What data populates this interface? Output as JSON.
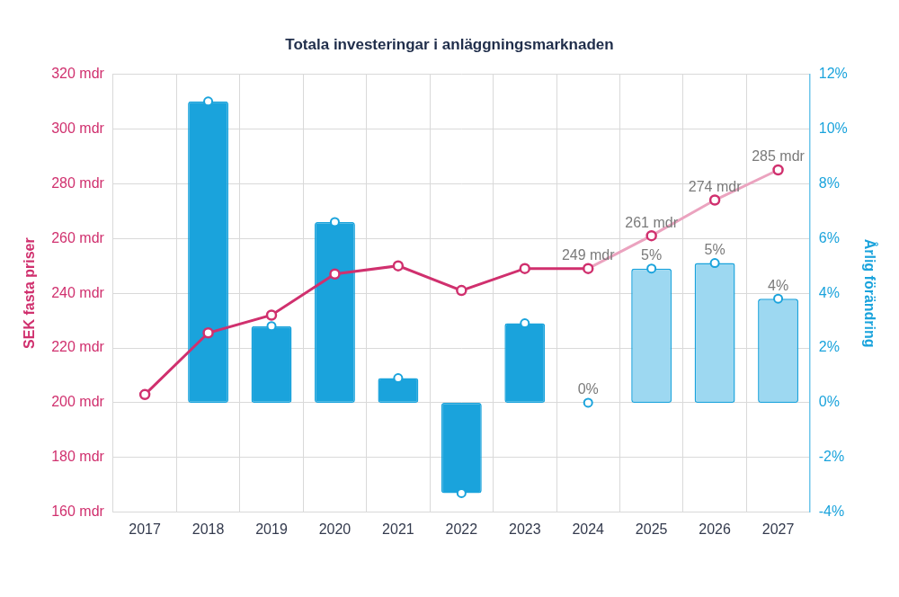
{
  "chart_data": {
    "type": "bar",
    "title": "Totala investeringar i anläggningsmarknaden",
    "categories": [
      "2017",
      "2018",
      "2019",
      "2020",
      "2021",
      "2022",
      "2023",
      "2024",
      "2025",
      "2026",
      "2027"
    ],
    "ylabel": "SEK fasta priser",
    "y2label": "Årlig förändring",
    "ylim": [
      160,
      320
    ],
    "yticks": [
      {
        "value": 160,
        "label": "160 mdr"
      },
      {
        "value": 180,
        "label": "180 mdr"
      },
      {
        "value": 200,
        "label": "200 mdr"
      },
      {
        "value": 220,
        "label": "220 mdr"
      },
      {
        "value": 240,
        "label": "240 mdr"
      },
      {
        "value": 260,
        "label": "260 mdr"
      },
      {
        "value": 280,
        "label": "280 mdr"
      },
      {
        "value": 300,
        "label": "300 mdr"
      },
      {
        "value": 320,
        "label": "320 mdr"
      }
    ],
    "y2lim": [
      -4,
      12
    ],
    "y2ticks": [
      {
        "value": -4,
        "label": "-4%"
      },
      {
        "value": -2,
        "label": "-2%"
      },
      {
        "value": 0,
        "label": "0%"
      },
      {
        "value": 2,
        "label": "2%"
      },
      {
        "value": 4,
        "label": "4%"
      },
      {
        "value": 6,
        "label": "6%"
      },
      {
        "value": 8,
        "label": "8%"
      },
      {
        "value": 10,
        "label": "10%"
      },
      {
        "value": 12,
        "label": "12%"
      }
    ],
    "grid": true,
    "data_labels": true,
    "series": [
      {
        "type": "bar",
        "axis": "y2",
        "color": "#1aa3dc",
        "colors": [
          "#1aa3dc",
          "#1aa3dc",
          "#1aa3dc",
          "#1aa3dc",
          "#1aa3dc",
          "#1aa3dc",
          "#1aa3dc",
          "#1aa3dc",
          "#9dd8f1",
          "#9dd8f1",
          "#9dd8f1"
        ],
        "marker": "circle",
        "values": [
          null,
          11,
          2.8,
          6.6,
          0.9,
          -3.3,
          2.9,
          0,
          4.9,
          5.1,
          3.8
        ],
        "value_labels": [
          null,
          null,
          null,
          null,
          null,
          null,
          null,
          "0%",
          "5%",
          "5%",
          "4%"
        ]
      },
      {
        "type": "line",
        "color": "#d0306e",
        "colors": [
          "#d0306e",
          "#d0306e",
          "#d0306e",
          "#d0306e",
          "#d0306e",
          "#d0306e",
          "#d0306e",
          "#d0306e",
          "#eba3bf",
          "#eba3bf",
          "#eba3bf"
        ],
        "marker": "circle",
        "line_style": "solid",
        "values": [
          203,
          225.5,
          232,
          247,
          250,
          241,
          249,
          249,
          261,
          274,
          285
        ],
        "value_labels": [
          null,
          null,
          null,
          null,
          null,
          null,
          null,
          "249 mdr",
          "261 mdr",
          "274 mdr",
          "285 mdr"
        ]
      }
    ]
  }
}
